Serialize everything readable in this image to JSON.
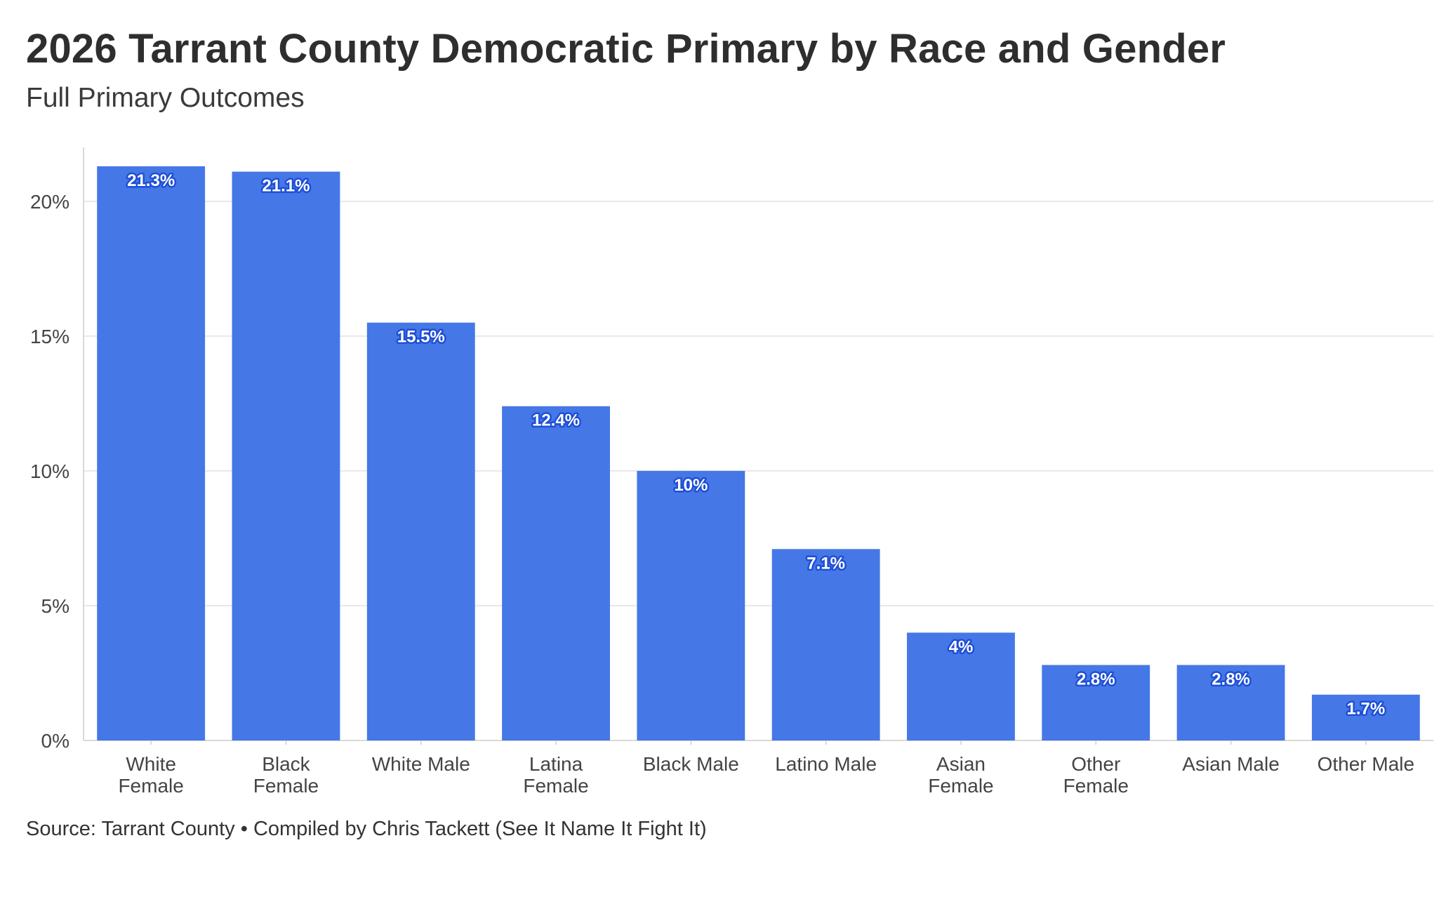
{
  "header": {
    "title": "2026 Tarrant County Democratic Primary by Race and Gender",
    "subtitle": "Full Primary Outcomes"
  },
  "footer": {
    "source": "Source: Tarrant County • Compiled by Chris Tackett (See It Name It Fight It)"
  },
  "colors": {
    "bar": "#4577e6",
    "grid": "#e8e8e8",
    "axis": "#d9d9d9"
  },
  "chart_data": {
    "type": "bar",
    "title": "2026 Tarrant County Democratic Primary by Race and Gender",
    "subtitle": "Full Primary Outcomes",
    "xlabel": "",
    "ylabel": "",
    "ylim": [
      0,
      22
    ],
    "grid": true,
    "categories": [
      [
        "White",
        "Female"
      ],
      [
        "Black",
        "Female"
      ],
      [
        "White Male"
      ],
      [
        "Latina",
        "Female"
      ],
      [
        "Black Male"
      ],
      [
        "Latino Male"
      ],
      [
        "Asian",
        "Female"
      ],
      [
        "Other",
        "Female"
      ],
      [
        "Asian Male"
      ],
      [
        "Other Male"
      ]
    ],
    "values": [
      21.3,
      21.1,
      15.5,
      12.4,
      10,
      7.1,
      4,
      2.8,
      2.8,
      1.7
    ],
    "data_labels": [
      "21.3%",
      "21.1%",
      "15.5%",
      "12.4%",
      "10%",
      "7.1%",
      "4%",
      "2.8%",
      "2.8%",
      "1.7%"
    ],
    "y_ticks": [
      0,
      5,
      10,
      15,
      20
    ],
    "y_tick_labels": [
      "0%",
      "5%",
      "10%",
      "15%",
      "20%"
    ]
  }
}
